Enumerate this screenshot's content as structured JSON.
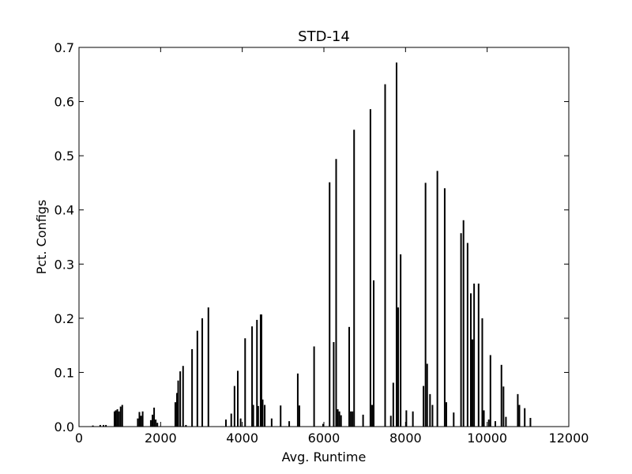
{
  "chart_data": {
    "type": "bar",
    "title": "STD-14",
    "xlabel": "Avg. Runtime",
    "ylabel": "Pct. Configs",
    "xlim": [
      0,
      12000
    ],
    "ylim": [
      0,
      0.7
    ],
    "xticks": [
      "0",
      "2000",
      "4000",
      "6000",
      "8000",
      "10000",
      "12000"
    ],
    "yticks": [
      "0.0",
      "0.1",
      "0.2",
      "0.3",
      "0.4",
      "0.5",
      "0.6",
      "0.7"
    ],
    "grid": false,
    "color": "#000000",
    "series": [
      {
        "x": [
          340,
          520,
          600,
          660,
          870,
          900,
          940,
          980,
          1020,
          1060,
          1440,
          1480,
          1520,
          1560,
          1760,
          1800,
          1840,
          1880,
          1920,
          2360,
          2400,
          2430,
          2480,
          2550,
          2620,
          2770,
          2900,
          3020,
          3170,
          3600,
          3730,
          3810,
          3890,
          3960,
          4070,
          4240,
          4270,
          4360,
          4390,
          4450,
          4470,
          4500,
          4550,
          4720,
          4940,
          5150,
          5360,
          5400,
          5760,
          5980,
          6140,
          6240,
          6300,
          6340,
          6380,
          6420,
          6620,
          6660,
          6700,
          6740,
          6960,
          7140,
          7180,
          7220,
          7500,
          7640,
          7700,
          7780,
          7820,
          7880,
          8020,
          8180,
          8440,
          8490,
          8530,
          8600,
          8660,
          8780,
          8960,
          9000,
          9180,
          9360,
          9420,
          9520,
          9600,
          9640,
          9680,
          9790,
          9880,
          9920,
          10040,
          10080,
          10200,
          10350,
          10400,
          10460,
          10750,
          10790,
          10920,
          11060
        ]
      },
      {
        "values": [
          0.002,
          0.003,
          0.003,
          0.003,
          0.028,
          0.03,
          0.032,
          0.028,
          0.037,
          0.04,
          0.015,
          0.027,
          0.02,
          0.028,
          0.012,
          0.022,
          0.035,
          0.013,
          0.007,
          0.045,
          0.062,
          0.085,
          0.102,
          0.112,
          0.003,
          0.143,
          0.177,
          0.2,
          0.22,
          0.013,
          0.024,
          0.075,
          0.103,
          0.015,
          0.163,
          0.185,
          0.04,
          0.197,
          0.038,
          0.207,
          0.207,
          0.05,
          0.04,
          0.015,
          0.039,
          0.01,
          0.098,
          0.039,
          0.148,
          0.005,
          0.451,
          0.156,
          0.494,
          0.032,
          0.028,
          0.021,
          0.184,
          0.028,
          0.028,
          0.548,
          0.022,
          0.586,
          0.04,
          0.27,
          0.632,
          0.02,
          0.081,
          0.672,
          0.22,
          0.318,
          0.03,
          0.028,
          0.075,
          0.45,
          0.116,
          0.06,
          0.04,
          0.472,
          0.44,
          0.045,
          0.026,
          0.357,
          0.381,
          0.339,
          0.246,
          0.161,
          0.264,
          0.264,
          0.2,
          0.03,
          0.013,
          0.132,
          0.01,
          0.114,
          0.074,
          0.018,
          0.06,
          0.04,
          0.034,
          0.016
        ]
      }
    ]
  }
}
